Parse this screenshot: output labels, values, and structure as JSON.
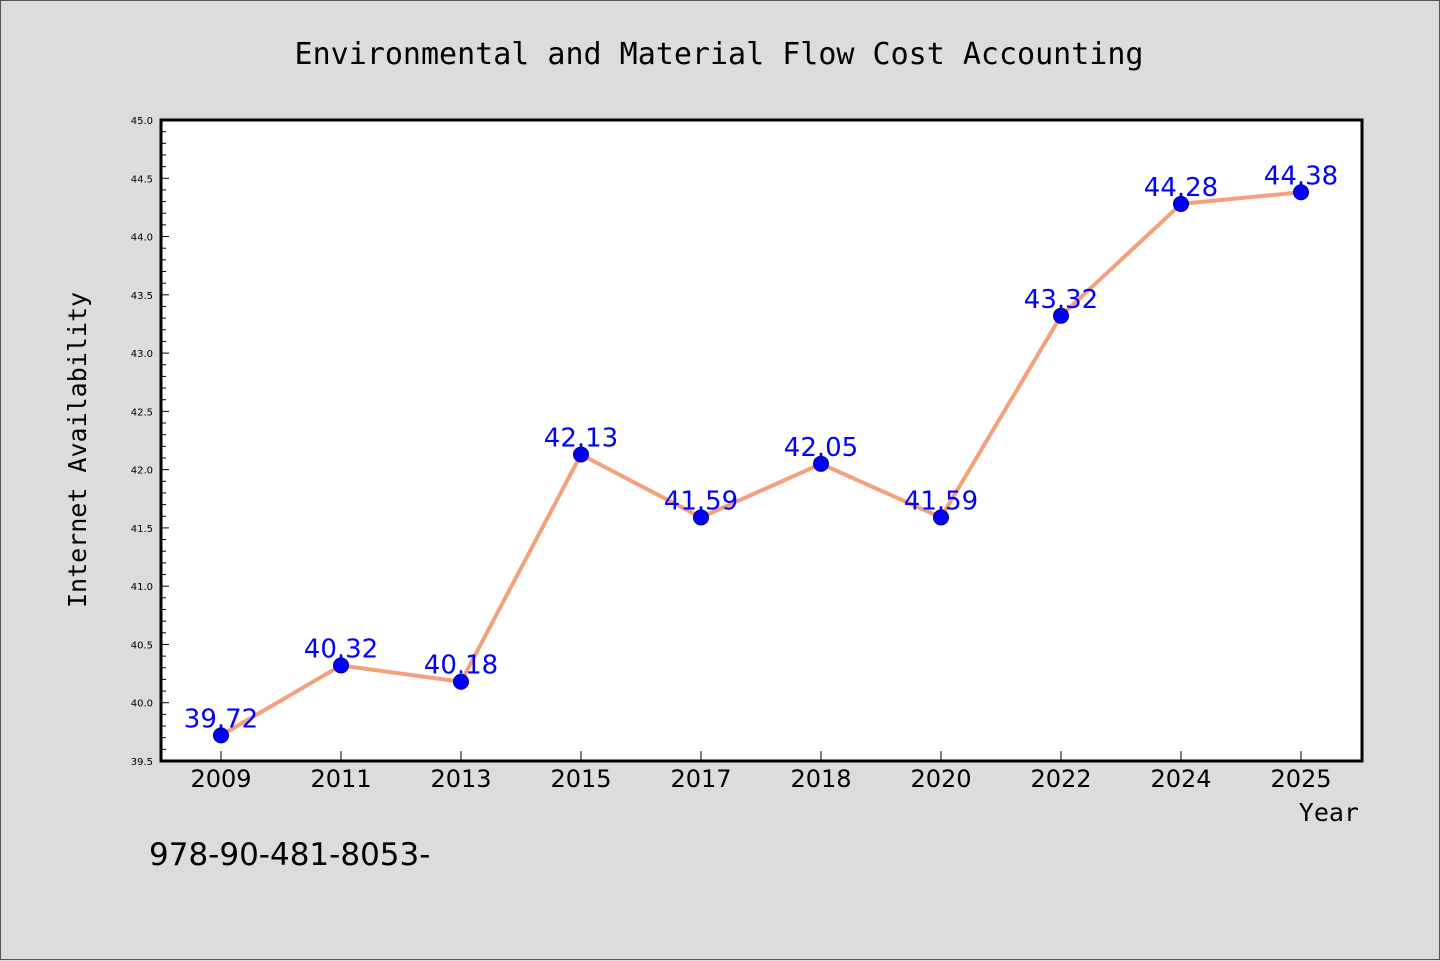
{
  "chart_data": {
    "type": "line",
    "title": "Environmental and Material Flow Cost Accounting",
    "xlabel": "Year",
    "ylabel": "Internet Availability",
    "categories": [
      "2009",
      "2011",
      "2013",
      "2015",
      "2017",
      "2018",
      "2020",
      "2022",
      "2024",
      "2025"
    ],
    "series": [
      {
        "values": [
          39.72,
          40.32,
          40.18,
          42.13,
          41.59,
          42.05,
          41.59,
          43.32,
          44.28,
          44.38
        ],
        "data_labels": [
          "39.72",
          "40.32",
          "40.18",
          "42.13",
          "41.59",
          "42.05",
          "41.59",
          "43.32",
          "44.28",
          "44.38"
        ]
      }
    ],
    "ylim": [
      39.5,
      45.0
    ],
    "yticks": [
      "39.5",
      "40.0",
      "40.5",
      "41.0",
      "41.5",
      "42.0",
      "42.5",
      "43.0",
      "43.5",
      "44.0",
      "44.5",
      "45.0"
    ],
    "grid": false,
    "legend": "none"
  },
  "annotation": "978-90-481-8053-",
  "colors": {
    "background": "#dcdcdc",
    "plot_background": "#ffffff",
    "line": "#f4a07c",
    "marker": "#0000ff",
    "data_label": "#0000ff"
  }
}
